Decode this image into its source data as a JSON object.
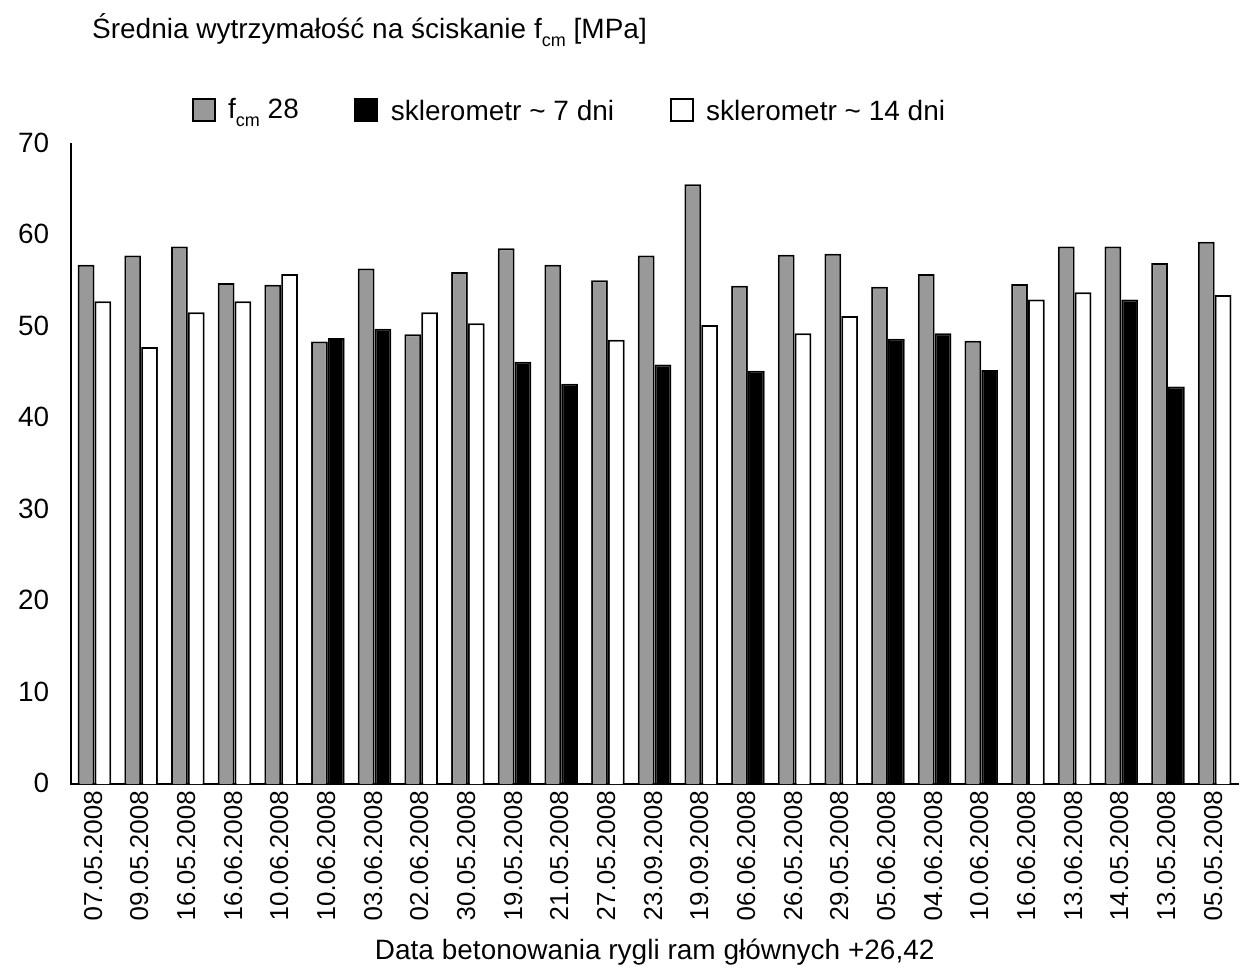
{
  "chart_data": {
    "type": "bar",
    "ylabel": "Średnia wytrzymałość na ściskanie f$_{cm}$ [MPa]",
    "xlabel": "Data betonowania rygli ram głównych +26,42",
    "categories": [
      "07.05.2008",
      "09.05.2008",
      "16.05.2008",
      "16.06.2008",
      "10.06.2008",
      "10.06.2008",
      "03.06.2008",
      "02.06.2008",
      "30.05.2008",
      "19.05.2008",
      "21.05.2008",
      "27.05.2008",
      "23.09.2008",
      "19.09.2008",
      "06.06.2008",
      "26.05.2008",
      "29.05.2008",
      "05.06.2008",
      "04.06.2008",
      "10.06.2008",
      "16.06.2008",
      "13.06.2008",
      "14.05.2008",
      "13.05.2008",
      "05.05.2008"
    ],
    "series": [
      {
        "name": "f$_{cm}$ 28",
        "color": "#999999",
        "values": [
          56.8,
          57.8,
          58.8,
          54.8,
          54.6,
          48.4,
          56.4,
          49.2,
          56,
          58.6,
          56.8,
          55.1,
          57.8,
          65.6,
          54.5,
          57.9,
          58,
          54.4,
          55.8,
          48.5,
          54.7,
          58.8,
          58.8,
          57,
          59.3
        ]
      },
      {
        "name": "sklerometr ~ 7 dni",
        "color": "#000000",
        "values": [
          null,
          null,
          null,
          null,
          null,
          48.8,
          49.8,
          null,
          null,
          46.2,
          43.8,
          null,
          45.9,
          null,
          45.2,
          null,
          null,
          48.7,
          49.3,
          45.3,
          null,
          null,
          53,
          43.5,
          null
        ]
      },
      {
        "name": "sklerometr ~ 14 dni",
        "color": "#ffffff",
        "values": [
          52.8,
          47.8,
          51.6,
          52.8,
          55.8,
          null,
          null,
          51.6,
          50.4,
          null,
          null,
          48.6,
          null,
          50.2,
          null,
          49.3,
          51.2,
          null,
          null,
          null,
          53,
          53.8,
          null,
          null,
          53.5
        ]
      }
    ],
    "ylim": [
      0,
      70
    ],
    "yticks": [
      0,
      10,
      20,
      30,
      40,
      50,
      60,
      70
    ],
    "grid": false,
    "legend": "top"
  }
}
